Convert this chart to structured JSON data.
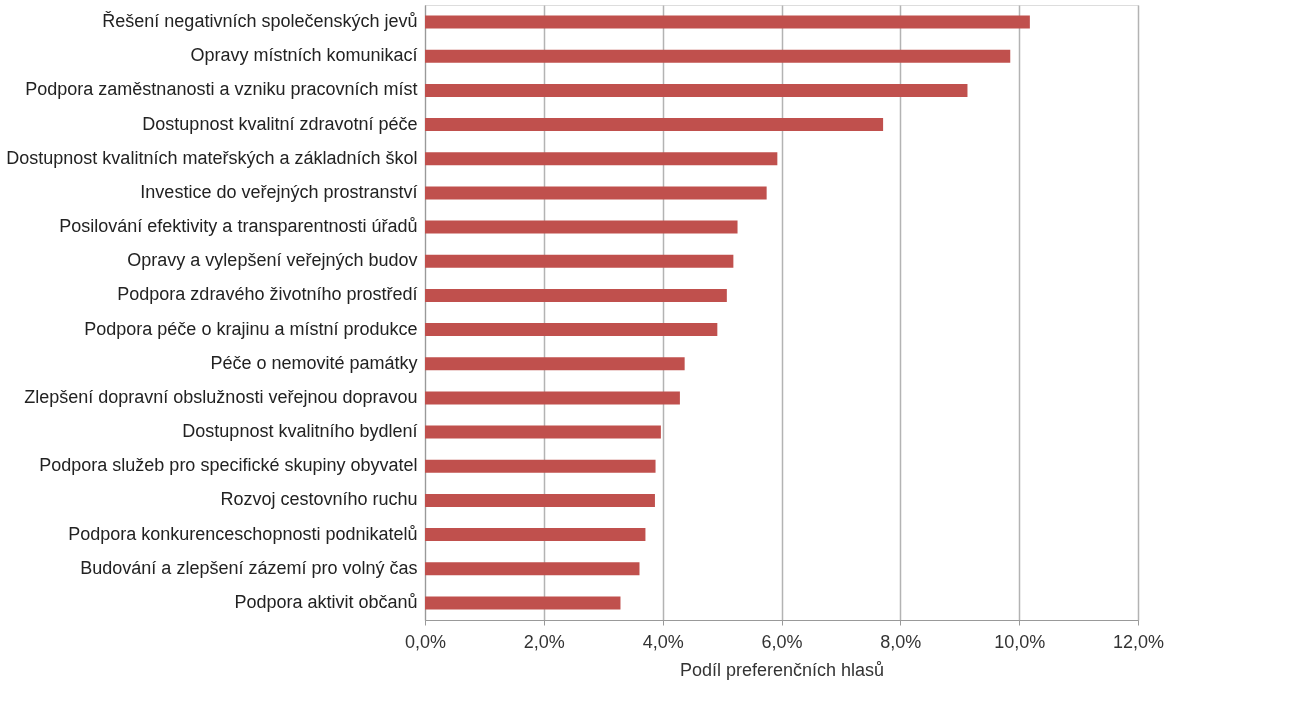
{
  "chart_data": {
    "type": "bar",
    "orientation": "horizontal",
    "xlabel": "Podíl preferenčních hlasů",
    "categories": [
      "Řešení negativních společenských jevů",
      "Opravy místních komunikací",
      "Podpora zaměstnanosti a vzniku pracovních míst",
      "Dostupnost kvalitní zdravotní péče",
      "Dostupnost kvalitních mateřských a základních škol",
      "Investice do veřejných prostranství",
      "Posilování efektivity a transparentnosti úřadů",
      "Opravy a vylepšení veřejných budov",
      "Podpora zdravého životního prostředí",
      "Podpora péče o krajinu a místní produkce",
      "Péče o nemovité památky",
      "Zlepšení dopravní obslužnosti veřejnou dopravou",
      "Dostupnost kvalitního bydlení",
      "Podpora služeb pro specifické skupiny obyvatel",
      "Rozvoj cestovního ruchu",
      "Podpora konkurenceschopnosti podnikatelů",
      "Budování a zlepšení zázemí pro volný čas",
      "Podpora aktivit občanů"
    ],
    "values": [
      10.18,
      9.85,
      9.13,
      7.71,
      5.93,
      5.75,
      5.26,
      5.19,
      5.08,
      4.92,
      4.37,
      4.29,
      3.97,
      3.88,
      3.87,
      3.71,
      3.61,
      3.29
    ],
    "color": "#c0504d",
    "xlim": [
      0,
      12
    ],
    "xticks": [
      {
        "value": 0,
        "label": "0,0%"
      },
      {
        "value": 2,
        "label": "2,0%"
      },
      {
        "value": 4,
        "label": "4,0%"
      },
      {
        "value": 6,
        "label": "6,0%"
      },
      {
        "value": 8,
        "label": "8,0%"
      },
      {
        "value": 10,
        "label": "10,0%"
      },
      {
        "value": 12,
        "label": "12,0%"
      }
    ],
    "grid": "x"
  }
}
